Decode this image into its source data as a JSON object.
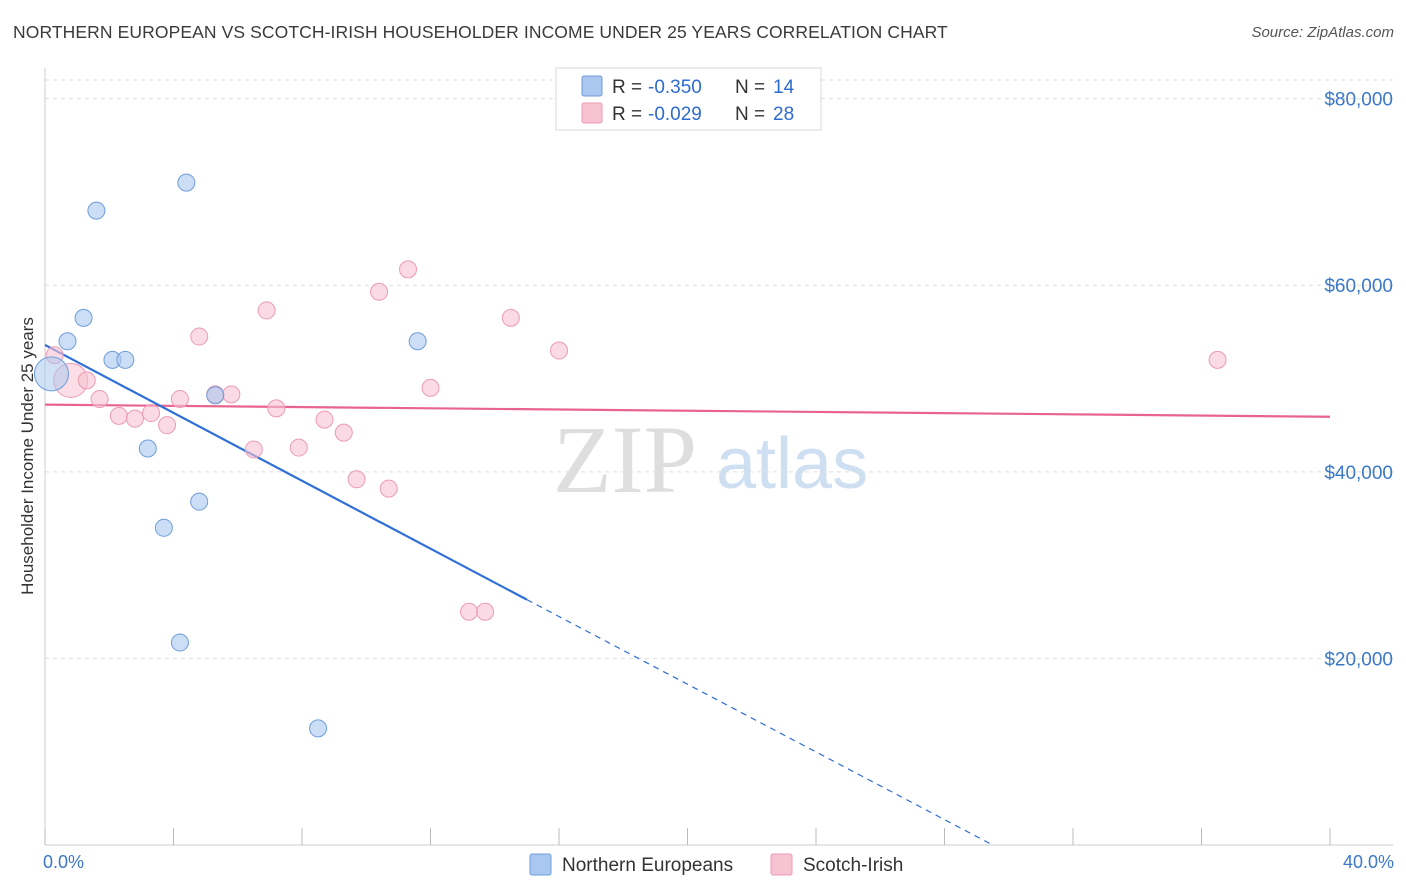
{
  "header": {
    "title": "NORTHERN EUROPEAN VS SCOTCH-IRISH HOUSEHOLDER INCOME UNDER 25 YEARS CORRELATION CHART",
    "source": "Source: ZipAtlas.com"
  },
  "watermark": {
    "zip": "ZIP",
    "atlas": "atlas"
  },
  "colors": {
    "blue_fill": "#aac8ef",
    "blue_stroke": "#6e9ddb",
    "blue_line": "#2f6fd6",
    "pink_fill": "#f7c2d2",
    "pink_stroke": "#ec9bb3",
    "pink_line": "#e8648f",
    "grid": "#dddddd",
    "tick_text": "#3b78c8"
  },
  "legend": {
    "rows": [
      {
        "r_label": "R =",
        "r_value": "-0.350",
        "n_label": "N =",
        "n_value": "14"
      },
      {
        "r_label": "R =",
        "r_value": "-0.029",
        "n_label": "N =",
        "n_value": "28"
      }
    ]
  },
  "chart_data": {
    "type": "scatter",
    "title": "NORTHERN EUROPEAN VS SCOTCH-IRISH HOUSEHOLDER INCOME UNDER 25 YEARS CORRELATION CHART",
    "xlabel": "",
    "ylabel": "Householder Income Under 25 years",
    "xlim": [
      0,
      40
    ],
    "ylim": [
      0,
      82000
    ],
    "x_tick_labels": [
      "0.0%",
      "40.0%"
    ],
    "y_ticks": [
      20000,
      40000,
      60000,
      80000
    ],
    "y_tick_labels": [
      "$20,000",
      "$40,000",
      "$60,000",
      "$80,000"
    ],
    "grid": true,
    "series": [
      {
        "name": "Northern Europeans",
        "color": "blue",
        "R": -0.35,
        "N": 14,
        "points": [
          {
            "x": 0.2,
            "y": 50500,
            "big": true
          },
          {
            "x": 0.7,
            "y": 54000
          },
          {
            "x": 1.2,
            "y": 56500
          },
          {
            "x": 1.6,
            "y": 68000
          },
          {
            "x": 2.1,
            "y": 52000
          },
          {
            "x": 2.5,
            "y": 52000
          },
          {
            "x": 3.2,
            "y": 42500
          },
          {
            "x": 3.7,
            "y": 34000
          },
          {
            "x": 4.2,
            "y": 21700
          },
          {
            "x": 4.4,
            "y": 71000
          },
          {
            "x": 4.8,
            "y": 36800
          },
          {
            "x": 5.3,
            "y": 48200
          },
          {
            "x": 8.5,
            "y": 12500
          },
          {
            "x": 11.6,
            "y": 54000
          }
        ],
        "trend": {
          "x0": 0.0,
          "y0": 53600,
          "x1": 15.0,
          "y1": 26300,
          "dash_to_x": 29.5,
          "dash_to_y": 0
        }
      },
      {
        "name": "Scotch-Irish",
        "color": "pink",
        "R": -0.029,
        "N": 28,
        "points": [
          {
            "x": 0.3,
            "y": 52500
          },
          {
            "x": 0.8,
            "y": 49800,
            "big": true
          },
          {
            "x": 1.3,
            "y": 49800
          },
          {
            "x": 1.7,
            "y": 47800
          },
          {
            "x": 2.3,
            "y": 46000
          },
          {
            "x": 2.8,
            "y": 45700
          },
          {
            "x": 3.3,
            "y": 46300
          },
          {
            "x": 3.8,
            "y": 45000
          },
          {
            "x": 4.2,
            "y": 47800
          },
          {
            "x": 4.8,
            "y": 54500
          },
          {
            "x": 5.3,
            "y": 48300
          },
          {
            "x": 5.8,
            "y": 48300
          },
          {
            "x": 6.5,
            "y": 42400
          },
          {
            "x": 6.9,
            "y": 57300
          },
          {
            "x": 7.2,
            "y": 46800
          },
          {
            "x": 7.9,
            "y": 42600
          },
          {
            "x": 8.7,
            "y": 45600
          },
          {
            "x": 9.3,
            "y": 44200
          },
          {
            "x": 9.7,
            "y": 39200
          },
          {
            "x": 10.4,
            "y": 59300
          },
          {
            "x": 10.7,
            "y": 38200
          },
          {
            "x": 11.3,
            "y": 61700
          },
          {
            "x": 12.0,
            "y": 49000
          },
          {
            "x": 13.2,
            "y": 25000
          },
          {
            "x": 13.7,
            "y": 25000
          },
          {
            "x": 14.5,
            "y": 56500
          },
          {
            "x": 16.0,
            "y": 53000
          },
          {
            "x": 36.5,
            "y": 52000
          }
        ],
        "trend": {
          "x0": 0.0,
          "y0": 47200,
          "x1": 40.0,
          "y1": 45900
        }
      }
    ]
  }
}
